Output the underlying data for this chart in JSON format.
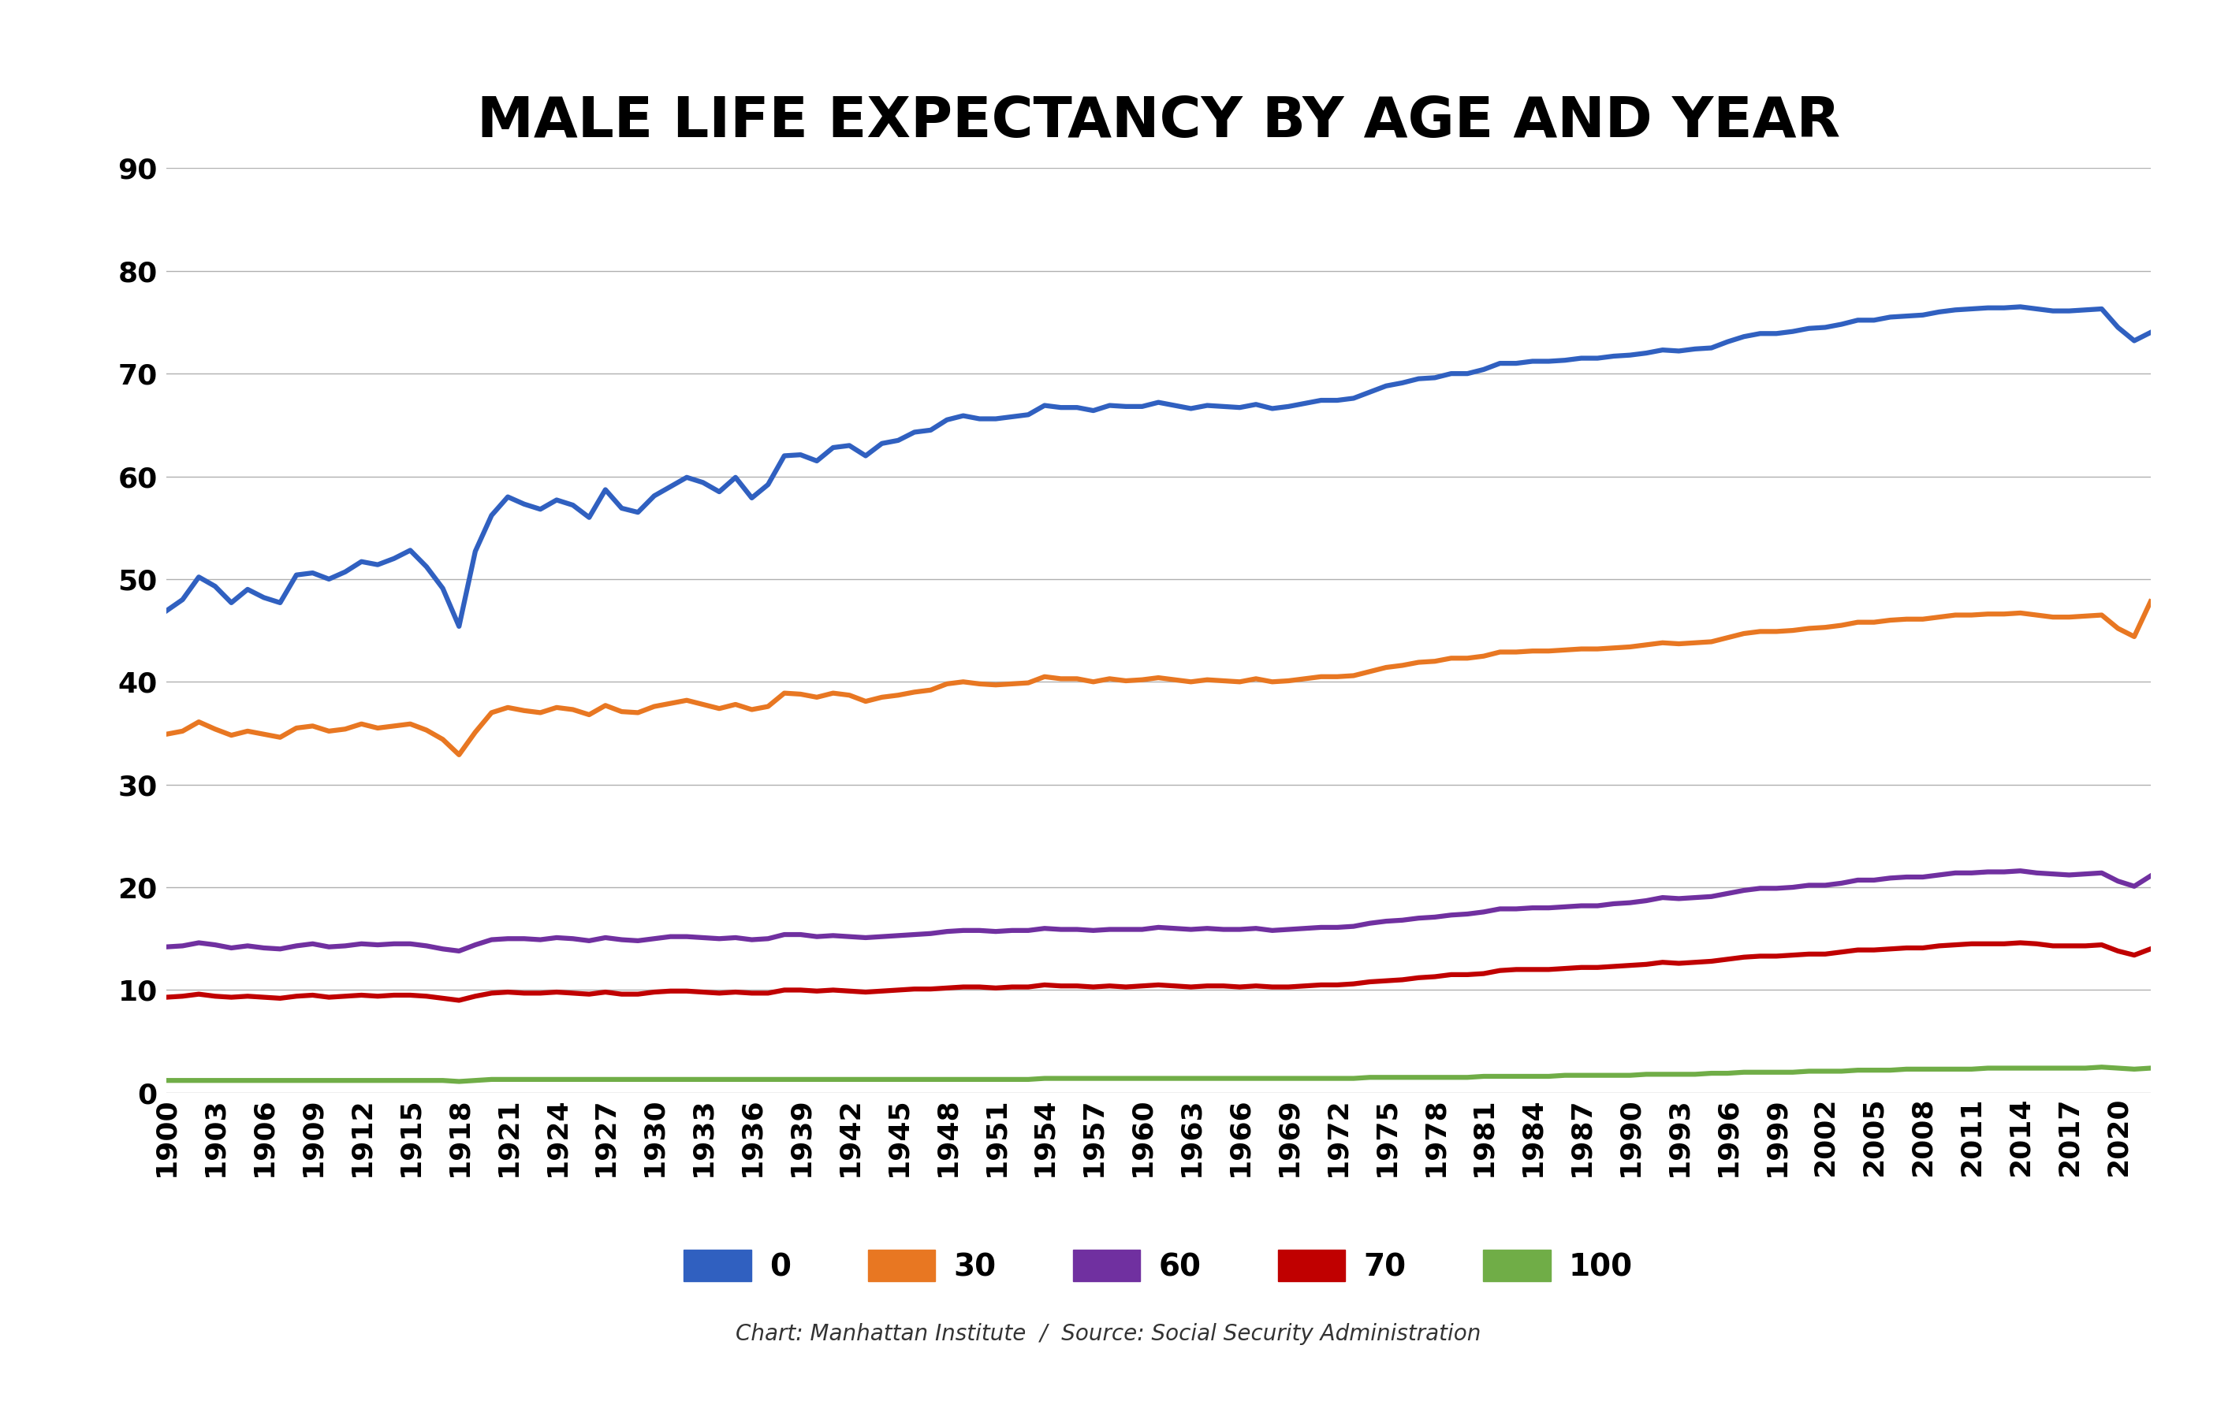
{
  "title": "MALE LIFE EXPECTANCY BY AGE AND YEAR",
  "subtitle": "Chart: Manhattan Institute  /  Source: Social Security Administration",
  "ylim": [
    0,
    90
  ],
  "yticks": [
    0,
    10,
    20,
    30,
    40,
    50,
    60,
    70,
    80,
    90
  ],
  "background_color": "#ffffff",
  "series": {
    "0": {
      "color": "#3060c0",
      "label": "0",
      "data": {
        "1900": 46.9,
        "1901": 48.0,
        "1902": 50.2,
        "1903": 49.3,
        "1904": 47.7,
        "1905": 49.0,
        "1906": 48.2,
        "1907": 47.7,
        "1908": 50.4,
        "1909": 50.6,
        "1910": 50.0,
        "1911": 50.7,
        "1912": 51.7,
        "1913": 51.4,
        "1914": 52.0,
        "1915": 52.8,
        "1916": 51.2,
        "1917": 49.1,
        "1918": 45.4,
        "1919": 52.7,
        "1920": 56.2,
        "1921": 58.0,
        "1922": 57.3,
        "1923": 56.8,
        "1924": 57.7,
        "1925": 57.2,
        "1926": 56.0,
        "1927": 58.7,
        "1928": 56.9,
        "1929": 56.5,
        "1930": 58.1,
        "1931": 59.0,
        "1932": 59.9,
        "1933": 59.4,
        "1934": 58.5,
        "1935": 59.9,
        "1936": 57.9,
        "1937": 59.2,
        "1938": 62.0,
        "1939": 62.1,
        "1940": 61.5,
        "1941": 62.8,
        "1942": 63.0,
        "1943": 62.0,
        "1944": 63.2,
        "1945": 63.5,
        "1946": 64.3,
        "1947": 64.5,
        "1948": 65.5,
        "1949": 65.9,
        "1950": 65.6,
        "1951": 65.6,
        "1952": 65.8,
        "1953": 66.0,
        "1954": 66.9,
        "1955": 66.7,
        "1956": 66.7,
        "1957": 66.4,
        "1958": 66.9,
        "1959": 66.8,
        "1960": 66.8,
        "1961": 67.2,
        "1962": 66.9,
        "1963": 66.6,
        "1964": 66.9,
        "1965": 66.8,
        "1966": 66.7,
        "1967": 67.0,
        "1968": 66.6,
        "1969": 66.8,
        "1970": 67.1,
        "1971": 67.4,
        "1972": 67.4,
        "1973": 67.6,
        "1974": 68.2,
        "1975": 68.8,
        "1976": 69.1,
        "1977": 69.5,
        "1978": 69.6,
        "1979": 70.0,
        "1980": 70.0,
        "1981": 70.4,
        "1982": 71.0,
        "1983": 71.0,
        "1984": 71.2,
        "1985": 71.2,
        "1986": 71.3,
        "1987": 71.5,
        "1988": 71.5,
        "1989": 71.7,
        "1990": 71.8,
        "1991": 72.0,
        "1992": 72.3,
        "1993": 72.2,
        "1994": 72.4,
        "1995": 72.5,
        "1996": 73.1,
        "1997": 73.6,
        "1998": 73.9,
        "1999": 73.9,
        "2000": 74.1,
        "2001": 74.4,
        "2002": 74.5,
        "2003": 74.8,
        "2004": 75.2,
        "2005": 75.2,
        "2006": 75.5,
        "2007": 75.6,
        "2008": 75.7,
        "2009": 76.0,
        "2010": 76.2,
        "2011": 76.3,
        "2012": 76.4,
        "2013": 76.4,
        "2014": 76.5,
        "2015": 76.3,
        "2016": 76.1,
        "2017": 76.1,
        "2018": 76.2,
        "2019": 76.3,
        "2020": 74.5,
        "2021": 73.2,
        "2022": 74.0
      }
    },
    "30": {
      "color": "#e87722",
      "label": "30",
      "data": {
        "1900": 34.9,
        "1901": 35.2,
        "1902": 36.1,
        "1903": 35.4,
        "1904": 34.8,
        "1905": 35.2,
        "1906": 34.9,
        "1907": 34.6,
        "1908": 35.5,
        "1909": 35.7,
        "1910": 35.2,
        "1911": 35.4,
        "1912": 35.9,
        "1913": 35.5,
        "1914": 35.7,
        "1915": 35.9,
        "1916": 35.3,
        "1917": 34.4,
        "1918": 32.9,
        "1919": 35.1,
        "1920": 37.0,
        "1921": 37.5,
        "1922": 37.2,
        "1923": 37.0,
        "1924": 37.5,
        "1925": 37.3,
        "1926": 36.8,
        "1927": 37.7,
        "1928": 37.1,
        "1929": 37.0,
        "1930": 37.6,
        "1931": 37.9,
        "1932": 38.2,
        "1933": 37.8,
        "1934": 37.4,
        "1935": 37.8,
        "1936": 37.3,
        "1937": 37.6,
        "1938": 38.9,
        "1939": 38.8,
        "1940": 38.5,
        "1941": 38.9,
        "1942": 38.7,
        "1943": 38.1,
        "1944": 38.5,
        "1945": 38.7,
        "1946": 39.0,
        "1947": 39.2,
        "1948": 39.8,
        "1949": 40.0,
        "1950": 39.8,
        "1951": 39.7,
        "1952": 39.8,
        "1953": 39.9,
        "1954": 40.5,
        "1955": 40.3,
        "1956": 40.3,
        "1957": 40.0,
        "1958": 40.3,
        "1959": 40.1,
        "1960": 40.2,
        "1961": 40.4,
        "1962": 40.2,
        "1963": 40.0,
        "1964": 40.2,
        "1965": 40.1,
        "1966": 40.0,
        "1967": 40.3,
        "1968": 40.0,
        "1969": 40.1,
        "1970": 40.3,
        "1971": 40.5,
        "1972": 40.5,
        "1973": 40.6,
        "1974": 41.0,
        "1975": 41.4,
        "1976": 41.6,
        "1977": 41.9,
        "1978": 42.0,
        "1979": 42.3,
        "1980": 42.3,
        "1981": 42.5,
        "1982": 42.9,
        "1983": 42.9,
        "1984": 43.0,
        "1985": 43.0,
        "1986": 43.1,
        "1987": 43.2,
        "1988": 43.2,
        "1989": 43.3,
        "1990": 43.4,
        "1991": 43.6,
        "1992": 43.8,
        "1993": 43.7,
        "1994": 43.8,
        "1995": 43.9,
        "1996": 44.3,
        "1997": 44.7,
        "1998": 44.9,
        "1999": 44.9,
        "2000": 45.0,
        "2001": 45.2,
        "2002": 45.3,
        "2003": 45.5,
        "2004": 45.8,
        "2005": 45.8,
        "2006": 46.0,
        "2007": 46.1,
        "2008": 46.1,
        "2009": 46.3,
        "2010": 46.5,
        "2011": 46.5,
        "2012": 46.6,
        "2013": 46.6,
        "2014": 46.7,
        "2015": 46.5,
        "2016": 46.3,
        "2017": 46.3,
        "2018": 46.4,
        "2019": 46.5,
        "2020": 45.2,
        "2021": 44.4,
        "2022": 47.8
      }
    },
    "60": {
      "color": "#7030a0",
      "label": "60",
      "data": {
        "1900": 14.2,
        "1901": 14.3,
        "1902": 14.6,
        "1903": 14.4,
        "1904": 14.1,
        "1905": 14.3,
        "1906": 14.1,
        "1907": 14.0,
        "1908": 14.3,
        "1909": 14.5,
        "1910": 14.2,
        "1911": 14.3,
        "1912": 14.5,
        "1913": 14.4,
        "1914": 14.5,
        "1915": 14.5,
        "1916": 14.3,
        "1917": 14.0,
        "1918": 13.8,
        "1919": 14.4,
        "1920": 14.9,
        "1921": 15.0,
        "1922": 15.0,
        "1923": 14.9,
        "1924": 15.1,
        "1925": 15.0,
        "1926": 14.8,
        "1927": 15.1,
        "1928": 14.9,
        "1929": 14.8,
        "1930": 15.0,
        "1931": 15.2,
        "1932": 15.2,
        "1933": 15.1,
        "1934": 15.0,
        "1935": 15.1,
        "1936": 14.9,
        "1937": 15.0,
        "1938": 15.4,
        "1939": 15.4,
        "1940": 15.2,
        "1941": 15.3,
        "1942": 15.2,
        "1943": 15.1,
        "1944": 15.2,
        "1945": 15.3,
        "1946": 15.4,
        "1947": 15.5,
        "1948": 15.7,
        "1949": 15.8,
        "1950": 15.8,
        "1951": 15.7,
        "1952": 15.8,
        "1953": 15.8,
        "1954": 16.0,
        "1955": 15.9,
        "1956": 15.9,
        "1957": 15.8,
        "1958": 15.9,
        "1959": 15.9,
        "1960": 15.9,
        "1961": 16.1,
        "1962": 16.0,
        "1963": 15.9,
        "1964": 16.0,
        "1965": 15.9,
        "1966": 15.9,
        "1967": 16.0,
        "1968": 15.8,
        "1969": 15.9,
        "1970": 16.0,
        "1971": 16.1,
        "1972": 16.1,
        "1973": 16.2,
        "1974": 16.5,
        "1975": 16.7,
        "1976": 16.8,
        "1977": 17.0,
        "1978": 17.1,
        "1979": 17.3,
        "1980": 17.4,
        "1981": 17.6,
        "1982": 17.9,
        "1983": 17.9,
        "1984": 18.0,
        "1985": 18.0,
        "1986": 18.1,
        "1987": 18.2,
        "1988": 18.2,
        "1989": 18.4,
        "1990": 18.5,
        "1991": 18.7,
        "1992": 19.0,
        "1993": 18.9,
        "1994": 19.0,
        "1995": 19.1,
        "1996": 19.4,
        "1997": 19.7,
        "1998": 19.9,
        "1999": 19.9,
        "2000": 20.0,
        "2001": 20.2,
        "2002": 20.2,
        "2003": 20.4,
        "2004": 20.7,
        "2005": 20.7,
        "2006": 20.9,
        "2007": 21.0,
        "2008": 21.0,
        "2009": 21.2,
        "2010": 21.4,
        "2011": 21.4,
        "2012": 21.5,
        "2013": 21.5,
        "2014": 21.6,
        "2015": 21.4,
        "2016": 21.3,
        "2017": 21.2,
        "2018": 21.3,
        "2019": 21.4,
        "2020": 20.6,
        "2021": 20.1,
        "2022": 21.1
      }
    },
    "70": {
      "color": "#c00000",
      "label": "70",
      "data": {
        "1900": 9.3,
        "1901": 9.4,
        "1902": 9.6,
        "1903": 9.4,
        "1904": 9.3,
        "1905": 9.4,
        "1906": 9.3,
        "1907": 9.2,
        "1908": 9.4,
        "1909": 9.5,
        "1910": 9.3,
        "1911": 9.4,
        "1912": 9.5,
        "1913": 9.4,
        "1914": 9.5,
        "1915": 9.5,
        "1916": 9.4,
        "1917": 9.2,
        "1918": 9.0,
        "1919": 9.4,
        "1920": 9.7,
        "1921": 9.8,
        "1922": 9.7,
        "1923": 9.7,
        "1924": 9.8,
        "1925": 9.7,
        "1926": 9.6,
        "1927": 9.8,
        "1928": 9.6,
        "1929": 9.6,
        "1930": 9.8,
        "1931": 9.9,
        "1932": 9.9,
        "1933": 9.8,
        "1934": 9.7,
        "1935": 9.8,
        "1936": 9.7,
        "1937": 9.7,
        "1938": 10.0,
        "1939": 10.0,
        "1940": 9.9,
        "1941": 10.0,
        "1942": 9.9,
        "1943": 9.8,
        "1944": 9.9,
        "1945": 10.0,
        "1946": 10.1,
        "1947": 10.1,
        "1948": 10.2,
        "1949": 10.3,
        "1950": 10.3,
        "1951": 10.2,
        "1952": 10.3,
        "1953": 10.3,
        "1954": 10.5,
        "1955": 10.4,
        "1956": 10.4,
        "1957": 10.3,
        "1958": 10.4,
        "1959": 10.3,
        "1960": 10.4,
        "1961": 10.5,
        "1962": 10.4,
        "1963": 10.3,
        "1964": 10.4,
        "1965": 10.4,
        "1966": 10.3,
        "1967": 10.4,
        "1968": 10.3,
        "1969": 10.3,
        "1970": 10.4,
        "1971": 10.5,
        "1972": 10.5,
        "1973": 10.6,
        "1974": 10.8,
        "1975": 10.9,
        "1976": 11.0,
        "1977": 11.2,
        "1978": 11.3,
        "1979": 11.5,
        "1980": 11.5,
        "1981": 11.6,
        "1982": 11.9,
        "1983": 12.0,
        "1984": 12.0,
        "1985": 12.0,
        "1986": 12.1,
        "1987": 12.2,
        "1988": 12.2,
        "1989": 12.3,
        "1990": 12.4,
        "1991": 12.5,
        "1992": 12.7,
        "1993": 12.6,
        "1994": 12.7,
        "1995": 12.8,
        "1996": 13.0,
        "1997": 13.2,
        "1998": 13.3,
        "1999": 13.3,
        "2000": 13.4,
        "2001": 13.5,
        "2002": 13.5,
        "2003": 13.7,
        "2004": 13.9,
        "2005": 13.9,
        "2006": 14.0,
        "2007": 14.1,
        "2008": 14.1,
        "2009": 14.3,
        "2010": 14.4,
        "2011": 14.5,
        "2012": 14.5,
        "2013": 14.5,
        "2014": 14.6,
        "2015": 14.5,
        "2016": 14.3,
        "2017": 14.3,
        "2018": 14.3,
        "2019": 14.4,
        "2020": 13.8,
        "2021": 13.4,
        "2022": 14.0
      }
    },
    "100": {
      "color": "#70ad47",
      "label": "100",
      "data": {
        "1900": 1.2,
        "1901": 1.2,
        "1902": 1.2,
        "1903": 1.2,
        "1904": 1.2,
        "1905": 1.2,
        "1906": 1.2,
        "1907": 1.2,
        "1908": 1.2,
        "1909": 1.2,
        "1910": 1.2,
        "1911": 1.2,
        "1912": 1.2,
        "1913": 1.2,
        "1914": 1.2,
        "1915": 1.2,
        "1916": 1.2,
        "1917": 1.2,
        "1918": 1.1,
        "1919": 1.2,
        "1920": 1.3,
        "1921": 1.3,
        "1922": 1.3,
        "1923": 1.3,
        "1924": 1.3,
        "1925": 1.3,
        "1926": 1.3,
        "1927": 1.3,
        "1928": 1.3,
        "1929": 1.3,
        "1930": 1.3,
        "1931": 1.3,
        "1932": 1.3,
        "1933": 1.3,
        "1934": 1.3,
        "1935": 1.3,
        "1936": 1.3,
        "1937": 1.3,
        "1938": 1.3,
        "1939": 1.3,
        "1940": 1.3,
        "1941": 1.3,
        "1942": 1.3,
        "1943": 1.3,
        "1944": 1.3,
        "1945": 1.3,
        "1946": 1.3,
        "1947": 1.3,
        "1948": 1.3,
        "1949": 1.3,
        "1950": 1.3,
        "1951": 1.3,
        "1952": 1.3,
        "1953": 1.3,
        "1954": 1.4,
        "1955": 1.4,
        "1956": 1.4,
        "1957": 1.4,
        "1958": 1.4,
        "1959": 1.4,
        "1960": 1.4,
        "1961": 1.4,
        "1962": 1.4,
        "1963": 1.4,
        "1964": 1.4,
        "1965": 1.4,
        "1966": 1.4,
        "1967": 1.4,
        "1968": 1.4,
        "1969": 1.4,
        "1970": 1.4,
        "1971": 1.4,
        "1972": 1.4,
        "1973": 1.4,
        "1974": 1.5,
        "1975": 1.5,
        "1976": 1.5,
        "1977": 1.5,
        "1978": 1.5,
        "1979": 1.5,
        "1980": 1.5,
        "1981": 1.6,
        "1982": 1.6,
        "1983": 1.6,
        "1984": 1.6,
        "1985": 1.6,
        "1986": 1.7,
        "1987": 1.7,
        "1988": 1.7,
        "1989": 1.7,
        "1990": 1.7,
        "1991": 1.8,
        "1992": 1.8,
        "1993": 1.8,
        "1994": 1.8,
        "1995": 1.9,
        "1996": 1.9,
        "1997": 2.0,
        "1998": 2.0,
        "1999": 2.0,
        "2000": 2.0,
        "2001": 2.1,
        "2002": 2.1,
        "2003": 2.1,
        "2004": 2.2,
        "2005": 2.2,
        "2006": 2.2,
        "2007": 2.3,
        "2008": 2.3,
        "2009": 2.3,
        "2010": 2.3,
        "2011": 2.3,
        "2012": 2.4,
        "2013": 2.4,
        "2014": 2.4,
        "2015": 2.4,
        "2016": 2.4,
        "2017": 2.4,
        "2018": 2.4,
        "2019": 2.5,
        "2020": 2.4,
        "2021": 2.3,
        "2022": 2.4
      }
    }
  },
  "legend_order": [
    "0",
    "30",
    "60",
    "70",
    "100"
  ],
  "line_width": 4.5,
  "tick_fontsize": 26,
  "title_fontsize": 52,
  "legend_fontsize": 28,
  "subtitle_fontsize": 20,
  "grid_color": "#b0b0b0",
  "grid_linewidth": 1.0
}
